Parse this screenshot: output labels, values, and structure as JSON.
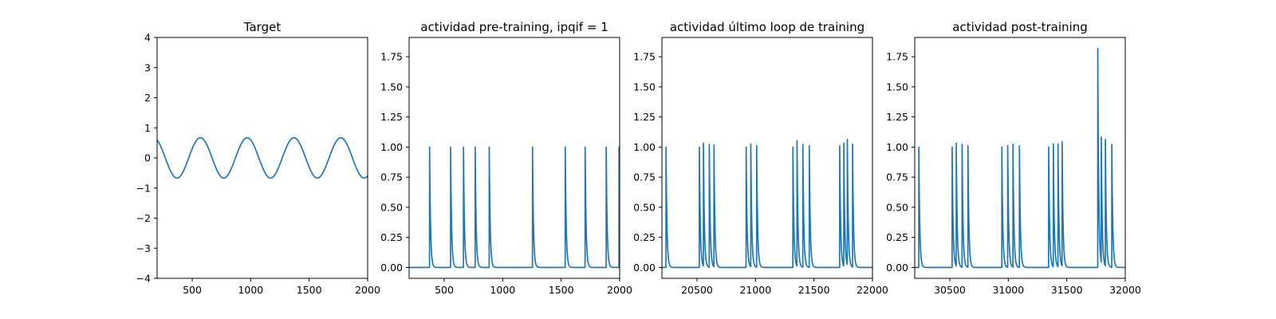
{
  "figure": {
    "background": "#ffffff",
    "series_color": "#1f77b4"
  },
  "chart_data": [
    {
      "type": "line",
      "title": "Target",
      "xlabel": "",
      "ylabel": "",
      "xlim": [
        200,
        2000
      ],
      "ylim": [
        -4,
        4
      ],
      "x_ticks": [
        500,
        1000,
        1500,
        2000
      ],
      "y_ticks": [
        -4,
        -3,
        -2,
        -1,
        0,
        1,
        2,
        3,
        4
      ],
      "grid": false,
      "series": [
        {
          "kind": "sine",
          "amplitude": 0.67,
          "period": 400,
          "peak_x": 570,
          "x_range": [
            200,
            2000
          ],
          "peaks_at_x": [
            570,
            970,
            1370,
            1770
          ],
          "troughs_at_x": [
            370,
            770,
            1170,
            1570,
            1970
          ]
        }
      ]
    },
    {
      "type": "line",
      "title": "actividad pre-training, ipqif = 1",
      "xlabel": "",
      "ylabel": "",
      "xlim": [
        200,
        2000
      ],
      "ylim": [
        -0.09,
        1.91
      ],
      "x_ticks": [
        500,
        1000,
        1500,
        2000
      ],
      "y_ticks": [
        0.0,
        0.25,
        0.5,
        0.75,
        1.0,
        1.25,
        1.5,
        1.75
      ],
      "grid": false,
      "series": [
        {
          "kind": "spike_train",
          "x_range": [
            200,
            2000
          ],
          "spikes": [
            {
              "x": 375,
              "height": 1.0
            },
            {
              "x": 555,
              "height": 1.0
            },
            {
              "x": 665,
              "height": 1.0
            },
            {
              "x": 765,
              "height": 1.0
            },
            {
              "x": 885,
              "height": 1.0
            },
            {
              "x": 1255,
              "height": 1.0
            },
            {
              "x": 1535,
              "height": 1.0
            },
            {
              "x": 1705,
              "height": 1.0
            },
            {
              "x": 1885,
              "height": 1.0
            },
            {
              "x": 1995,
              "height": 1.0
            }
          ]
        }
      ]
    },
    {
      "type": "line",
      "title": "actividad último loop de training",
      "xlabel": "",
      "ylabel": "",
      "xlim": [
        20200,
        22000
      ],
      "ylim": [
        -0.09,
        1.91
      ],
      "x_ticks": [
        20500,
        21000,
        21500,
        22000
      ],
      "y_ticks": [
        0.0,
        0.25,
        0.5,
        0.75,
        1.0,
        1.25,
        1.5,
        1.75
      ],
      "grid": false,
      "series": [
        {
          "kind": "spike_train",
          "x_range": [
            20200,
            22000
          ],
          "spikes": [
            {
              "x": 20235,
              "height": 1.0
            },
            {
              "x": 20520,
              "height": 1.0
            },
            {
              "x": 20555,
              "height": 1.02
            },
            {
              "x": 20605,
              "height": 1.02
            },
            {
              "x": 20645,
              "height": 1.01
            },
            {
              "x": 20920,
              "height": 1.0
            },
            {
              "x": 20960,
              "height": 1.02
            },
            {
              "x": 21010,
              "height": 1.01
            },
            {
              "x": 21320,
              "height": 1.0
            },
            {
              "x": 21355,
              "height": 1.04
            },
            {
              "x": 21405,
              "height": 1.02
            },
            {
              "x": 21460,
              "height": 1.01
            },
            {
              "x": 21720,
              "height": 1.01
            },
            {
              "x": 21755,
              "height": 1.02
            },
            {
              "x": 21785,
              "height": 1.04
            },
            {
              "x": 21830,
              "height": 1.02
            }
          ]
        }
      ]
    },
    {
      "type": "line",
      "title": "actividad post-training",
      "xlabel": "",
      "ylabel": "",
      "xlim": [
        30200,
        32000
      ],
      "ylim": [
        -0.09,
        1.91
      ],
      "x_ticks": [
        30500,
        31000,
        31500,
        32000
      ],
      "y_ticks": [
        0.0,
        0.25,
        0.5,
        0.75,
        1.0,
        1.25,
        1.5,
        1.75
      ],
      "grid": false,
      "series": [
        {
          "kind": "spike_train",
          "x_range": [
            30200,
            32000
          ],
          "spikes": [
            {
              "x": 30235,
              "height": 1.0
            },
            {
              "x": 30520,
              "height": 1.0
            },
            {
              "x": 30555,
              "height": 1.02
            },
            {
              "x": 30605,
              "height": 1.02
            },
            {
              "x": 30655,
              "height": 1.01
            },
            {
              "x": 30945,
              "height": 1.0
            },
            {
              "x": 30995,
              "height": 1.01
            },
            {
              "x": 31040,
              "height": 1.02
            },
            {
              "x": 31095,
              "height": 1.01
            },
            {
              "x": 31345,
              "height": 1.0
            },
            {
              "x": 31385,
              "height": 1.02
            },
            {
              "x": 31425,
              "height": 1.02
            },
            {
              "x": 31460,
              "height": 1.03
            },
            {
              "x": 31765,
              "height": 1.82
            },
            {
              "x": 31795,
              "height": 1.04
            },
            {
              "x": 31830,
              "height": 1.05
            },
            {
              "x": 31885,
              "height": 1.02
            }
          ]
        }
      ]
    }
  ]
}
